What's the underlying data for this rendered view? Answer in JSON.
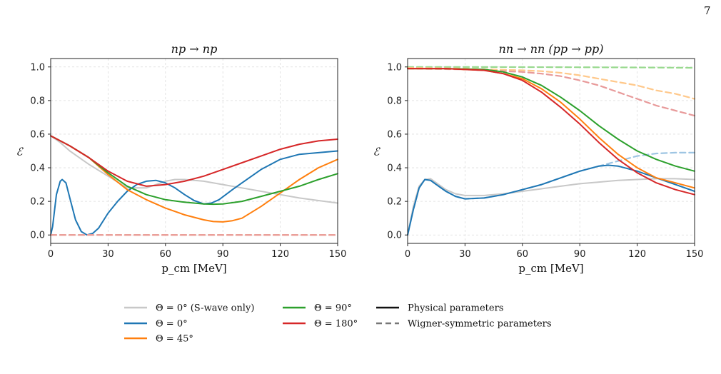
{
  "page_number": "7",
  "chart_data": [
    {
      "type": "line",
      "title": "np → np",
      "xlabel": "p_cm [MeV]",
      "ylabel": "ℰ",
      "xlim": [
        0,
        150
      ],
      "ylim": [
        -0.05,
        1.05
      ],
      "xticks": [
        0,
        30,
        60,
        90,
        120,
        150
      ],
      "yticks": [
        0.0,
        0.2,
        0.4,
        0.6,
        0.8,
        1.0
      ],
      "grid": true,
      "series": [
        {
          "name": "Θ = 0° (S-wave only)",
          "color": "#c8c8c8",
          "style": "solid",
          "x": [
            0,
            5,
            10,
            15,
            20,
            30,
            40,
            50,
            60,
            65,
            70,
            80,
            90,
            100,
            110,
            120,
            130,
            140,
            150
          ],
          "y": [
            0.59,
            0.55,
            0.5,
            0.46,
            0.42,
            0.35,
            0.28,
            0.28,
            0.32,
            0.33,
            0.33,
            0.32,
            0.3,
            0.28,
            0.26,
            0.24,
            0.22,
            0.205,
            0.19
          ]
        },
        {
          "name": "Θ = 0°",
          "color": "#1f77b4",
          "style": "solid",
          "x": [
            0,
            1,
            3,
            5,
            6,
            8,
            10,
            13,
            16,
            19,
            22,
            25,
            30,
            35,
            40,
            45,
            50,
            55,
            60,
            65,
            70,
            75,
            80,
            84,
            88,
            95,
            100,
            110,
            120,
            130,
            140,
            150
          ],
          "y": [
            0.0,
            0.05,
            0.24,
            0.32,
            0.33,
            0.31,
            0.22,
            0.09,
            0.02,
            0.0,
            0.01,
            0.04,
            0.13,
            0.2,
            0.26,
            0.3,
            0.32,
            0.325,
            0.31,
            0.28,
            0.24,
            0.205,
            0.185,
            0.19,
            0.21,
            0.27,
            0.31,
            0.39,
            0.45,
            0.48,
            0.49,
            0.5
          ]
        },
        {
          "name": "Θ = 45°",
          "color": "#ff7f0e",
          "style": "solid",
          "x": [
            0,
            10,
            20,
            30,
            40,
            50,
            60,
            70,
            80,
            85,
            90,
            95,
            100,
            110,
            120,
            130,
            140,
            150
          ],
          "y": [
            0.59,
            0.53,
            0.46,
            0.36,
            0.27,
            0.21,
            0.16,
            0.12,
            0.09,
            0.08,
            0.078,
            0.085,
            0.1,
            0.17,
            0.25,
            0.33,
            0.4,
            0.45
          ]
        },
        {
          "name": "Θ = 90°",
          "color": "#2ca02c",
          "style": "solid",
          "x": [
            0,
            10,
            20,
            30,
            40,
            50,
            60,
            70,
            80,
            85,
            90,
            100,
            110,
            120,
            130,
            140,
            150
          ],
          "y": [
            0.59,
            0.53,
            0.46,
            0.37,
            0.29,
            0.24,
            0.21,
            0.195,
            0.185,
            0.183,
            0.185,
            0.2,
            0.23,
            0.26,
            0.29,
            0.33,
            0.365
          ]
        },
        {
          "name": "Θ = 180°",
          "color": "#d62728",
          "style": "solid",
          "x": [
            0,
            10,
            20,
            30,
            40,
            50,
            60,
            70,
            80,
            90,
            100,
            110,
            120,
            130,
            140,
            150
          ],
          "y": [
            0.59,
            0.53,
            0.46,
            0.38,
            0.32,
            0.29,
            0.3,
            0.32,
            0.35,
            0.39,
            0.43,
            0.47,
            0.51,
            0.54,
            0.56,
            0.57
          ]
        },
        {
          "name": "Wigner (Θ = 45°)",
          "color": "#ffbb78",
          "style": "dashed",
          "x": [
            0,
            150
          ],
          "y": [
            0.0,
            0.0
          ]
        },
        {
          "name": "Wigner (Θ = 180°)",
          "color": "#e89a9a",
          "style": "dashed",
          "x": [
            0,
            150
          ],
          "y": [
            0.0,
            0.0
          ]
        }
      ]
    },
    {
      "type": "line",
      "title": "nn → nn (pp → pp)",
      "xlabel": "p_cm [MeV]",
      "ylabel": "ℰ",
      "xlim": [
        0,
        150
      ],
      "ylim": [
        -0.05,
        1.05
      ],
      "xticks": [
        0,
        30,
        60,
        90,
        120,
        150
      ],
      "yticks": [
        0.0,
        0.2,
        0.4,
        0.6,
        0.8,
        1.0
      ],
      "grid": true,
      "series": [
        {
          "name": "Wigner (Θ = 90°)",
          "color": "#98d98e",
          "style": "dashed",
          "x": [
            0,
            30,
            60,
            90,
            120,
            150
          ],
          "y": [
            1.0,
            1.0,
            0.999,
            0.998,
            0.997,
            0.995
          ]
        },
        {
          "name": "Wigner (Θ = 45°)",
          "color": "#ffc88a",
          "style": "dashed",
          "x": [
            0,
            30,
            60,
            70,
            80,
            90,
            100,
            110,
            120,
            130,
            140,
            150
          ],
          "y": [
            0.995,
            0.99,
            0.98,
            0.975,
            0.965,
            0.95,
            0.93,
            0.91,
            0.89,
            0.86,
            0.84,
            0.81
          ]
        },
        {
          "name": "Wigner (Θ = 180°)",
          "color": "#e89a9a",
          "style": "dashed",
          "x": [
            0,
            30,
            60,
            70,
            80,
            90,
            100,
            110,
            120,
            130,
            140,
            150
          ],
          "y": [
            0.99,
            0.985,
            0.97,
            0.96,
            0.945,
            0.92,
            0.89,
            0.85,
            0.81,
            0.77,
            0.74,
            0.71
          ]
        },
        {
          "name": "Wigner (Θ = 0°)",
          "color": "#9ec5e3",
          "style": "dashed",
          "x": [
            0,
            3,
            6,
            9,
            12,
            15,
            20,
            25,
            30,
            40,
            50,
            60,
            70,
            80,
            90,
            100,
            110,
            120,
            130,
            140,
            150
          ],
          "y": [
            0.0,
            0.15,
            0.28,
            0.33,
            0.325,
            0.3,
            0.26,
            0.23,
            0.215,
            0.22,
            0.24,
            0.27,
            0.3,
            0.34,
            0.38,
            0.41,
            0.44,
            0.47,
            0.485,
            0.49,
            0.49
          ]
        },
        {
          "name": "Θ = 0° (S-wave only)",
          "color": "#c8c8c8",
          "style": "solid",
          "x": [
            0,
            3,
            6,
            9,
            12,
            15,
            20,
            25,
            30,
            40,
            50,
            60,
            70,
            80,
            90,
            100,
            110,
            120,
            130,
            140,
            150
          ],
          "y": [
            0.0,
            0.17,
            0.29,
            0.33,
            0.335,
            0.31,
            0.27,
            0.245,
            0.235,
            0.235,
            0.245,
            0.26,
            0.275,
            0.29,
            0.305,
            0.315,
            0.325,
            0.33,
            0.335,
            0.335,
            0.33
          ]
        },
        {
          "name": "Θ = 0°",
          "color": "#1f77b4",
          "style": "solid",
          "x": [
            0,
            3,
            6,
            9,
            12,
            15,
            20,
            25,
            30,
            40,
            50,
            60,
            70,
            80,
            90,
            100,
            105,
            110,
            120,
            130,
            140,
            150
          ],
          "y": [
            0.0,
            0.15,
            0.28,
            0.33,
            0.325,
            0.3,
            0.26,
            0.23,
            0.215,
            0.22,
            0.24,
            0.27,
            0.3,
            0.34,
            0.38,
            0.41,
            0.415,
            0.41,
            0.38,
            0.34,
            0.3,
            0.26
          ]
        },
        {
          "name": "Θ = 90°",
          "color": "#2ca02c",
          "style": "solid",
          "x": [
            0,
            20,
            40,
            50,
            60,
            70,
            80,
            90,
            100,
            110,
            120,
            130,
            140,
            150
          ],
          "y": [
            0.99,
            0.99,
            0.985,
            0.97,
            0.94,
            0.89,
            0.82,
            0.74,
            0.65,
            0.57,
            0.5,
            0.45,
            0.41,
            0.38
          ]
        },
        {
          "name": "Θ = 45°",
          "color": "#ff7f0e",
          "style": "solid",
          "x": [
            0,
            20,
            40,
            50,
            60,
            70,
            80,
            90,
            100,
            110,
            120,
            130,
            140,
            150
          ],
          "y": [
            0.99,
            0.99,
            0.98,
            0.96,
            0.93,
            0.87,
            0.79,
            0.69,
            0.58,
            0.48,
            0.4,
            0.34,
            0.31,
            0.28
          ]
        },
        {
          "name": "Θ = 180°",
          "color": "#d62728",
          "style": "solid",
          "x": [
            0,
            20,
            40,
            50,
            60,
            70,
            80,
            90,
            100,
            110,
            120,
            130,
            140,
            150
          ],
          "y": [
            0.99,
            0.99,
            0.98,
            0.96,
            0.92,
            0.85,
            0.76,
            0.66,
            0.55,
            0.45,
            0.37,
            0.31,
            0.27,
            0.24
          ]
        }
      ]
    }
  ],
  "legend": {
    "theta_entries": [
      {
        "label": "Θ = 0° (S-wave only)",
        "color": "#c8c8c8"
      },
      {
        "label": "Θ = 0°",
        "color": "#1f77b4"
      },
      {
        "label": "Θ = 45°",
        "color": "#ff7f0e"
      },
      {
        "label": "Θ = 90°",
        "color": "#2ca02c"
      },
      {
        "label": "Θ = 180°",
        "color": "#d62728"
      }
    ],
    "style_entries": [
      {
        "label": "Physical parameters",
        "color": "#111111",
        "style": "solid"
      },
      {
        "label": "Wigner-symmetric parameters",
        "color": "#777777",
        "style": "dashed"
      }
    ]
  }
}
